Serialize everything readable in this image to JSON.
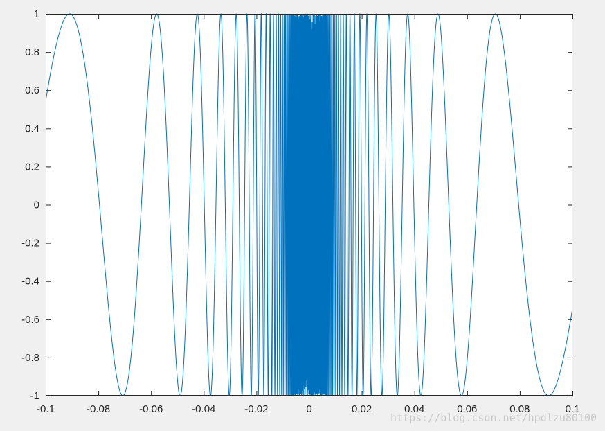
{
  "window": {
    "background": "#f0f0f0"
  },
  "watermark": {
    "text": "https://blog.csdn.net/hpdlzu80100"
  },
  "chart_data": {
    "type": "line",
    "title": "",
    "xlabel": "",
    "ylabel": "",
    "function": "sin(1/x)",
    "xlim": [
      -0.1,
      0.1
    ],
    "ylim": [
      -1,
      1
    ],
    "x_ticks": [
      -0.1,
      -0.08,
      -0.06,
      -0.04,
      -0.02,
      0,
      0.02,
      0.04,
      0.06,
      0.08,
      0.1
    ],
    "x_tick_labels": [
      "-0.1",
      "-0.08",
      "-0.06",
      "-0.04",
      "-0.02",
      "0",
      "0.02",
      "0.04",
      "0.06",
      "0.08",
      "0.1"
    ],
    "y_ticks": [
      -1,
      -0.8,
      -0.6,
      -0.4,
      -0.2,
      0,
      0.2,
      0.4,
      0.6,
      0.8,
      1
    ],
    "y_tick_labels": [
      "-1",
      "-0.8",
      "-0.6",
      "-0.4",
      "-0.2",
      "0",
      "0.2",
      "0.4",
      "0.6",
      "0.8",
      "1"
    ],
    "grid": false,
    "series": [
      {
        "color": "#0072bd",
        "x_start": -0.1,
        "x_end": 0.1,
        "sample_count": 20001
      }
    ]
  }
}
